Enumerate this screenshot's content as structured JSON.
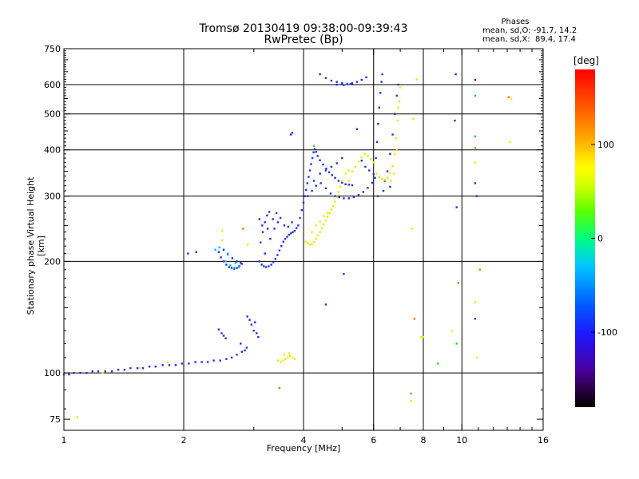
{
  "header": {
    "title_line1": "Tromsø 20130419 09:38:00-09:39:43",
    "title_line2": "RwPretec (Bp)"
  },
  "phases": {
    "title": "Phases",
    "o_line": "mean, sd,O: -91.7, 14.2",
    "x_line": "mean, sd,X:  89.4, 17.4"
  },
  "chart_data": {
    "type": "scatter",
    "xlabel": "Frequency [MHz]",
    "ylabel": "Stationary phase Virtual Height [km]",
    "x_scale": "log",
    "y_scale": "log",
    "xlim": [
      1,
      16
    ],
    "ylim": [
      70,
      750
    ],
    "x_ticks": [
      1,
      2,
      4,
      6,
      8,
      10,
      16
    ],
    "x_grid": [
      2,
      4,
      6,
      8,
      10
    ],
    "x_minor_ticks": [
      3,
      5,
      7,
      9,
      11,
      12,
      13,
      14,
      15
    ],
    "y_ticks": [
      75,
      100,
      200,
      300,
      400,
      500,
      600,
      750
    ],
    "y_grid": [
      100,
      200,
      300,
      400,
      500,
      600
    ],
    "grid": true,
    "colorbar": {
      "label": "[deg]",
      "ticks": [
        100,
        0,
        -100
      ],
      "range": [
        -180,
        180
      ]
    },
    "series": [
      {
        "mode": "O",
        "color": "#2030e8",
        "points": [
          [
            1.0,
            99
          ],
          [
            1.03,
            99
          ],
          [
            1.06,
            100
          ],
          [
            1.1,
            100
          ],
          [
            1.14,
            100
          ],
          [
            1.18,
            101
          ],
          [
            1.22,
            101
          ],
          [
            1.27,
            101
          ],
          [
            1.32,
            101
          ],
          [
            1.37,
            102
          ],
          [
            1.42,
            102
          ],
          [
            1.47,
            103
          ],
          [
            1.53,
            103
          ],
          [
            1.58,
            103
          ],
          [
            1.64,
            104
          ],
          [
            1.7,
            104
          ],
          [
            1.77,
            105
          ],
          [
            1.84,
            105
          ],
          [
            1.91,
            105
          ],
          [
            1.98,
            106
          ],
          [
            2.06,
            106
          ],
          [
            2.14,
            107
          ],
          [
            2.22,
            107
          ],
          [
            2.3,
            107
          ],
          [
            2.38,
            108
          ],
          [
            2.47,
            108
          ],
          [
            2.56,
            109
          ],
          [
            2.64,
            110
          ],
          [
            2.72,
            112
          ],
          [
            2.8,
            114
          ],
          [
            2.85,
            115
          ],
          [
            2.88,
            117
          ],
          [
            2.45,
            131
          ],
          [
            2.49,
            128
          ],
          [
            2.52,
            126
          ],
          [
            2.55,
            124
          ],
          [
            2.89,
            142
          ],
          [
            2.93,
            139
          ],
          [
            2.96,
            135
          ],
          [
            3.0,
            130
          ],
          [
            3.02,
            137
          ],
          [
            3.05,
            128
          ],
          [
            3.08,
            125
          ],
          [
            2.78,
            120
          ],
          [
            2.45,
            212
          ],
          [
            2.48,
            205
          ],
          [
            2.52,
            200
          ],
          [
            2.56,
            196
          ],
          [
            2.6,
            193
          ],
          [
            2.64,
            192
          ],
          [
            2.68,
            191
          ],
          [
            2.72,
            192
          ],
          [
            2.76,
            194
          ],
          [
            2.8,
            197
          ],
          [
            2.52,
            215
          ],
          [
            2.58,
            209
          ],
          [
            2.65,
            204
          ],
          [
            2.72,
            200
          ],
          [
            2.78,
            198
          ],
          [
            3.1,
            200
          ],
          [
            3.14,
            196
          ],
          [
            3.18,
            194
          ],
          [
            3.22,
            193
          ],
          [
            3.27,
            194
          ],
          [
            3.32,
            196
          ],
          [
            3.36,
            199
          ],
          [
            3.4,
            203
          ],
          [
            3.44,
            208
          ],
          [
            3.48,
            214
          ],
          [
            3.52,
            220
          ],
          [
            3.56,
            226
          ],
          [
            3.6,
            230
          ],
          [
            3.64,
            233
          ],
          [
            3.68,
            236
          ],
          [
            3.72,
            238
          ],
          [
            3.76,
            240
          ],
          [
            3.8,
            242
          ],
          [
            3.84,
            246
          ],
          [
            3.12,
            225
          ],
          [
            3.16,
            240
          ],
          [
            3.2,
            255
          ],
          [
            3.24,
            266
          ],
          [
            3.28,
            272
          ],
          [
            3.2,
            210
          ],
          [
            3.3,
            230
          ],
          [
            3.38,
            245
          ],
          [
            3.45,
            255
          ],
          [
            3.1,
            260
          ],
          [
            3.15,
            250
          ],
          [
            3.25,
            245
          ],
          [
            3.35,
            260
          ],
          [
            3.42,
            270
          ],
          [
            3.5,
            262
          ],
          [
            3.58,
            250
          ],
          [
            3.66,
            248
          ],
          [
            3.74,
            255
          ],
          [
            3.88,
            250
          ],
          [
            3.92,
            262
          ],
          [
            3.96,
            275
          ],
          [
            4.0,
            288
          ],
          [
            4.03,
            300
          ],
          [
            4.06,
            312
          ],
          [
            4.09,
            325
          ],
          [
            4.12,
            338
          ],
          [
            4.15,
            352
          ],
          [
            4.18,
            366
          ],
          [
            4.21,
            380
          ],
          [
            4.24,
            394
          ],
          [
            4.27,
            402
          ],
          [
            4.3,
            395
          ],
          [
            4.34,
            385
          ],
          [
            4.4,
            375
          ],
          [
            4.48,
            365
          ],
          [
            4.56,
            356
          ],
          [
            4.64,
            348
          ],
          [
            4.72,
            342
          ],
          [
            4.8,
            336
          ],
          [
            4.9,
            330
          ],
          [
            5.0,
            326
          ],
          [
            5.1,
            323
          ],
          [
            5.2,
            322
          ],
          [
            5.3,
            321
          ],
          [
            4.1,
            300
          ],
          [
            4.2,
            310
          ],
          [
            4.3,
            320
          ],
          [
            4.42,
            325
          ],
          [
            4.55,
            315
          ],
          [
            4.68,
            305
          ],
          [
            4.8,
            300
          ],
          [
            4.92,
            298
          ],
          [
            5.05,
            296
          ],
          [
            5.2,
            296
          ],
          [
            5.35,
            298
          ],
          [
            5.5,
            302
          ],
          [
            5.65,
            308
          ],
          [
            5.8,
            316
          ],
          [
            5.95,
            326
          ],
          [
            6.05,
            336
          ],
          [
            4.25,
            330
          ],
          [
            4.4,
            345
          ],
          [
            4.55,
            352
          ],
          [
            4.7,
            360
          ],
          [
            4.85,
            368
          ],
          [
            5.0,
            380
          ],
          [
            5.6,
            374
          ],
          [
            5.72,
            360
          ],
          [
            5.85,
            352
          ],
          [
            6.0,
            344
          ],
          [
            6.08,
            380
          ],
          [
            6.12,
            420
          ],
          [
            6.16,
            470
          ],
          [
            6.2,
            520
          ],
          [
            6.24,
            570
          ],
          [
            6.28,
            610
          ],
          [
            6.31,
            640
          ],
          [
            6.4,
            330
          ],
          [
            6.5,
            350
          ],
          [
            6.6,
            390
          ],
          [
            6.7,
            440
          ],
          [
            6.78,
            500
          ],
          [
            6.86,
            560
          ],
          [
            6.92,
            600
          ],
          [
            4.4,
            640
          ],
          [
            4.55,
            625
          ],
          [
            4.7,
            615
          ],
          [
            4.85,
            610
          ],
          [
            5.0,
            605
          ],
          [
            5.15,
            603
          ],
          [
            5.3,
            605
          ],
          [
            5.45,
            610
          ],
          [
            5.6,
            618
          ],
          [
            5.75,
            628
          ],
          [
            4.85,
            600
          ],
          [
            5.05,
            598
          ],
          [
            5.25,
            602
          ],
          [
            3.75,
            445
          ],
          [
            3.72,
            440
          ],
          [
            6.15,
            300
          ],
          [
            6.35,
            310
          ],
          [
            6.6,
            318
          ],
          [
            5.45,
            455
          ],
          [
            5.05,
            185
          ],
          [
            4.55,
            153
          ],
          [
            9.7,
            280
          ],
          [
            10.8,
            325
          ],
          [
            10.9,
            300
          ],
          [
            10.8,
            618
          ],
          [
            9.6,
            480
          ],
          [
            9.65,
            640
          ],
          [
            10.8,
            140
          ],
          [
            2.05,
            210
          ],
          [
            2.15,
            212
          ]
        ]
      },
      {
        "mode": "X",
        "color": "#f0e800",
        "points": [
          [
            4.05,
            226
          ],
          [
            4.1,
            224
          ],
          [
            4.15,
            222
          ],
          [
            4.2,
            223
          ],
          [
            4.25,
            226
          ],
          [
            4.3,
            230
          ],
          [
            4.35,
            235
          ],
          [
            4.4,
            240
          ],
          [
            4.45,
            246
          ],
          [
            4.5,
            252
          ],
          [
            4.55,
            258
          ],
          [
            4.6,
            264
          ],
          [
            4.65,
            270
          ],
          [
            4.7,
            276
          ],
          [
            4.75,
            282
          ],
          [
            4.8,
            290
          ],
          [
            4.85,
            298
          ],
          [
            4.9,
            308
          ],
          [
            4.95,
            318
          ],
          [
            5.0,
            330
          ],
          [
            4.2,
            240
          ],
          [
            4.3,
            250
          ],
          [
            4.4,
            256
          ],
          [
            4.5,
            265
          ],
          [
            4.6,
            270
          ],
          [
            5.1,
            345
          ],
          [
            5.2,
            352
          ],
          [
            5.3,
            350
          ],
          [
            5.4,
            360
          ],
          [
            5.5,
            372
          ],
          [
            5.6,
            382
          ],
          [
            5.7,
            390
          ],
          [
            5.8,
            385
          ],
          [
            5.9,
            378
          ],
          [
            6.0,
            370
          ],
          [
            6.1,
            345
          ],
          [
            6.2,
            338
          ],
          [
            6.3,
            334
          ],
          [
            6.4,
            332
          ],
          [
            6.5,
            336
          ],
          [
            6.6,
            346
          ],
          [
            6.7,
            362
          ],
          [
            6.78,
            390
          ],
          [
            6.84,
            430
          ],
          [
            6.9,
            480
          ],
          [
            6.96,
            540
          ],
          [
            7.0,
            590
          ],
          [
            6.62,
            330
          ],
          [
            6.74,
            345
          ],
          [
            6.86,
            400
          ],
          [
            6.92,
            520
          ],
          [
            3.45,
            108
          ],
          [
            3.5,
            107
          ],
          [
            3.55,
            108
          ],
          [
            3.6,
            109
          ],
          [
            3.65,
            110
          ],
          [
            3.7,
            111
          ],
          [
            3.75,
            110
          ],
          [
            3.8,
            109
          ],
          [
            3.58,
            112
          ],
          [
            3.68,
            113
          ],
          [
            2.5,
            228
          ],
          [
            2.5,
            242
          ],
          [
            2.9,
            222
          ],
          [
            1.55,
            103
          ],
          [
            1.82,
            107
          ],
          [
            1.25,
            100
          ],
          [
            1.08,
            76
          ],
          [
            7.5,
            245
          ],
          [
            7.55,
            485
          ],
          [
            7.7,
            620
          ],
          [
            7.45,
            84
          ],
          [
            7.9,
            125
          ],
          [
            7.98,
            125
          ],
          [
            10.9,
            110
          ],
          [
            10.8,
            155
          ],
          [
            10.8,
            370
          ],
          [
            13.2,
            420
          ],
          [
            13.3,
            550
          ],
          [
            9.45,
            130
          ],
          [
            5.2,
            330
          ]
        ]
      },
      {
        "mode": "other",
        "color": "#ff7000",
        "points": [
          [
            2.82,
            245
          ],
          [
            3.48,
            91
          ],
          [
            7.45,
            88
          ],
          [
            7.6,
            140
          ],
          [
            11.1,
            190
          ],
          [
            10.8,
            405
          ],
          [
            13.1,
            555
          ],
          [
            9.8,
            175
          ]
        ]
      },
      {
        "mode": "other",
        "color": "#30d020",
        "points": [
          [
            9.7,
            120
          ],
          [
            8.7,
            106
          ],
          [
            10.8,
            435
          ],
          [
            4.25,
            410
          ]
        ]
      },
      {
        "mode": "other",
        "color": "#00b8e8",
        "points": [
          [
            2.55,
            200
          ],
          [
            2.62,
            195
          ],
          [
            2.68,
            192
          ],
          [
            2.4,
            215
          ],
          [
            2.58,
            210
          ],
          [
            2.7,
            198
          ],
          [
            2.46,
            218
          ],
          [
            2.75,
            193
          ],
          [
            10.8,
            560
          ]
        ]
      }
    ]
  }
}
